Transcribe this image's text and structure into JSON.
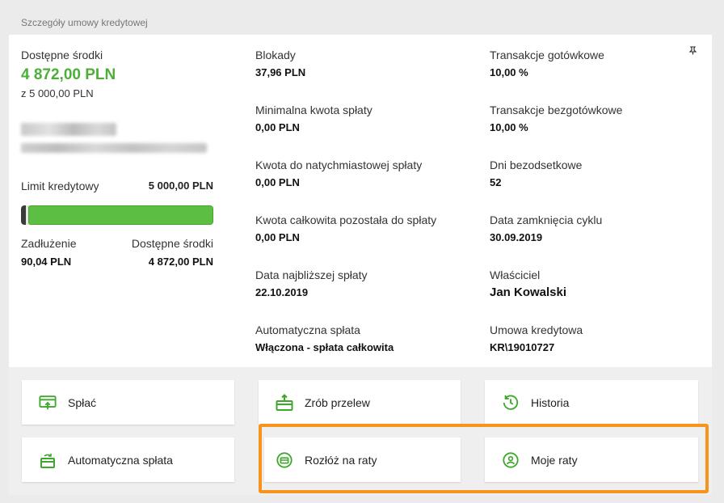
{
  "section_title": "Szczegóły umowy kredytowej",
  "available": {
    "label": "Dostępne środki",
    "amount": "4 872,00 PLN",
    "of_total": "z 5 000,00 PLN"
  },
  "limit": {
    "label": "Limit kredytowy",
    "value": "5 000,00 PLN",
    "used_fraction": 0.018
  },
  "debt": {
    "label": "Zadłużenie",
    "value": "90,04 PLN"
  },
  "available2": {
    "label": "Dostępne środki",
    "value": "4 872,00 PLN"
  },
  "middle": [
    {
      "label": "Blokady",
      "value": "37,96 PLN"
    },
    {
      "label": "Minimalna kwota spłaty",
      "value": "0,00 PLN"
    },
    {
      "label": "Kwota do natychmiastowej spłaty",
      "value": "0,00 PLN"
    },
    {
      "label": "Kwota całkowita pozostała do spłaty",
      "value": "0,00 PLN"
    },
    {
      "label": "Data najbliższej spłaty",
      "value": "22.10.2019"
    },
    {
      "label": "Automatyczna spłata",
      "value": "Włączona - spłata całkowita"
    }
  ],
  "right": [
    {
      "label": "Transakcje gotówkowe",
      "value": "10,00 %"
    },
    {
      "label": "Transakcje bezgotówkowe",
      "value": "10,00 %"
    },
    {
      "label": "Dni bezodsetkowe",
      "value": "52"
    },
    {
      "label": "Data zamknięcia cyklu",
      "value": "30.09.2019"
    },
    {
      "label": "Właściciel",
      "value": "Jan Kowalski"
    },
    {
      "label": "Umowa kredytowa",
      "value": "KR\\19010727"
    }
  ],
  "actions": {
    "splac": "Spłać",
    "przelew": "Zrób przelew",
    "historia": "Historia",
    "auto": "Automatyczna spłata",
    "rozloz": "Rozłóż na raty",
    "moje_raty": "Moje raty"
  },
  "colors": {
    "accent_green": "#4caf37",
    "highlight_orange": "#f7941d"
  }
}
